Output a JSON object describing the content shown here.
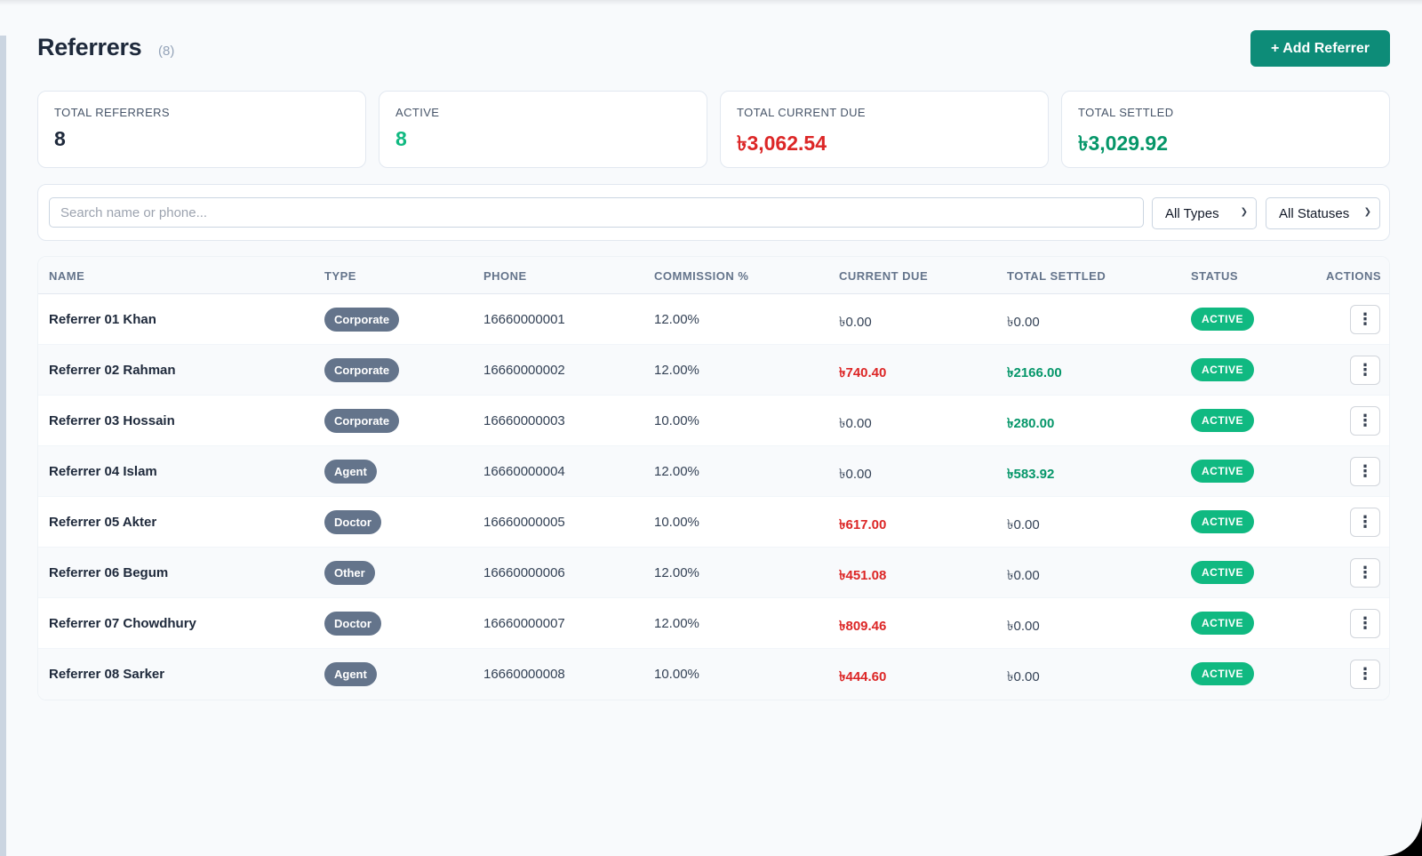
{
  "header": {
    "title": "Referrers",
    "count": "(8)",
    "add_button": "+ Add Referrer"
  },
  "stats": [
    {
      "label": "TOTAL REFERRERS",
      "value": "8",
      "color": "#1e293b"
    },
    {
      "label": "ACTIVE",
      "value": "8",
      "color": "#10b981"
    },
    {
      "label": "TOTAL CURRENT DUE",
      "value": "৳3,062.54",
      "color": "#dc2626"
    },
    {
      "label": "TOTAL SETTLED",
      "value": "৳3,029.92",
      "color": "#059669"
    }
  ],
  "filters": {
    "search_placeholder": "Search name or phone...",
    "type_select": "All Types",
    "status_select": "All Statuses"
  },
  "table": {
    "columns": {
      "name": "NAME",
      "type": "TYPE",
      "phone": "PHONE",
      "commission": "COMMISSION %",
      "current_due": "CURRENT DUE",
      "total_settled": "TOTAL SETTLED",
      "status": "STATUS",
      "actions": "ACTIONS"
    },
    "rows": [
      {
        "name": "Referrer 01 Khan",
        "type": "Corporate",
        "phone": "16660000001",
        "commission": "12.00%",
        "due": "৳0.00",
        "due_highlight": false,
        "settled": "৳0.00",
        "settled_highlight": false,
        "status": "ACTIVE"
      },
      {
        "name": "Referrer 02 Rahman",
        "type": "Corporate",
        "phone": "16660000002",
        "commission": "12.00%",
        "due": "৳740.40",
        "due_highlight": true,
        "settled": "৳2166.00",
        "settled_highlight": true,
        "status": "ACTIVE"
      },
      {
        "name": "Referrer 03 Hossain",
        "type": "Corporate",
        "phone": "16660000003",
        "commission": "10.00%",
        "due": "৳0.00",
        "due_highlight": false,
        "settled": "৳280.00",
        "settled_highlight": true,
        "status": "ACTIVE"
      },
      {
        "name": "Referrer 04 Islam",
        "type": "Agent",
        "phone": "16660000004",
        "commission": "12.00%",
        "due": "৳0.00",
        "due_highlight": false,
        "settled": "৳583.92",
        "settled_highlight": true,
        "status": "ACTIVE"
      },
      {
        "name": "Referrer 05 Akter",
        "type": "Doctor",
        "phone": "16660000005",
        "commission": "10.00%",
        "due": "৳617.00",
        "due_highlight": true,
        "settled": "৳0.00",
        "settled_highlight": false,
        "status": "ACTIVE"
      },
      {
        "name": "Referrer 06 Begum",
        "type": "Other",
        "phone": "16660000006",
        "commission": "12.00%",
        "due": "৳451.08",
        "due_highlight": true,
        "settled": "৳0.00",
        "settled_highlight": false,
        "status": "ACTIVE"
      },
      {
        "name": "Referrer 07 Chowdhury",
        "type": "Doctor",
        "phone": "16660000007",
        "commission": "12.00%",
        "due": "৳809.46",
        "due_highlight": true,
        "settled": "৳0.00",
        "settled_highlight": false,
        "status": "ACTIVE"
      },
      {
        "name": "Referrer 08 Sarker",
        "type": "Agent",
        "phone": "16660000008",
        "commission": "10.00%",
        "due": "৳444.60",
        "due_highlight": true,
        "settled": "৳0.00",
        "settled_highlight": false,
        "status": "ACTIVE"
      }
    ]
  },
  "icons": {
    "actions": "more-vertical-icon",
    "select_chevron": "chevron-down-icon"
  },
  "colors": {
    "accent": "#0d8c78",
    "due_red": "#dc2626",
    "settled_green": "#059669",
    "status_green": "#10b981",
    "type_pill": "#64748b"
  }
}
